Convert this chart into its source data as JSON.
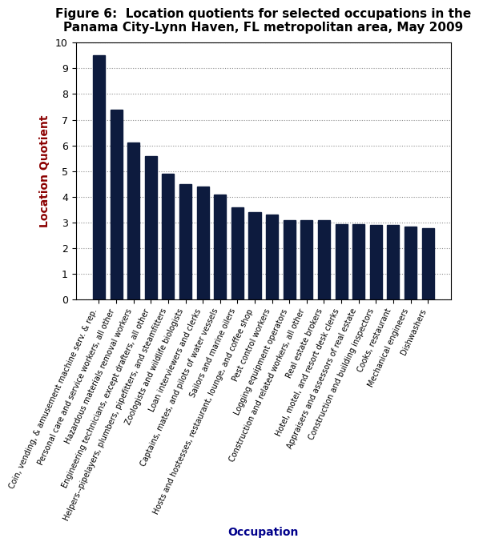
{
  "title": "Figure 6:  Location quotients for selected occupations in the\nPanama City-Lynn Haven, FL metropolitan area, May 2009",
  "xlabel": "Occupation",
  "ylabel": "Location Quotient",
  "bar_color": "#0d1b3e",
  "categories": [
    "Coin, vending, & amusement machine serv. & rep.",
    "Personal care and service workers, all other",
    "Hazardous materials removal workers",
    "Engineering technicians, except drafters, all other",
    "Helpers--pipelayers, plumbers, pipefitters, and steamfitters",
    "Zoologists and wildlife biologists",
    "Loan interviewers and clerks",
    "Captains, mates, and pilots of water vessels",
    "Sailors and marine oilers",
    "Hosts and hostesses, restaurant, lounge, and coffee shop",
    "Pest control workers",
    "Logging equipment operators",
    "Construction and related workers, all other",
    "Real estate brokers",
    "Hotel, motel, and resort desk clerks",
    "Appraisers and assessors of real estate",
    "Construction and building inspectors",
    "Cooks, restaurant",
    "Mechanical engineers",
    "Dishwashers"
  ],
  "values": [
    9.5,
    7.4,
    6.1,
    5.6,
    4.9,
    4.5,
    4.4,
    4.1,
    3.6,
    3.4,
    3.3,
    3.1,
    3.1,
    3.1,
    2.95,
    2.95,
    2.9,
    2.9,
    2.83,
    2.77
  ],
  "ylim": [
    0,
    10
  ],
  "yticks": [
    0,
    1,
    2,
    3,
    4,
    5,
    6,
    7,
    8,
    9,
    10
  ],
  "title_fontsize": 11,
  "axis_label_fontsize": 10,
  "tick_fontsize": 9,
  "xlabel_color": "#00008B",
  "ylabel_color": "#8B0000",
  "title_color": "#000000",
  "background_color": "#ffffff"
}
